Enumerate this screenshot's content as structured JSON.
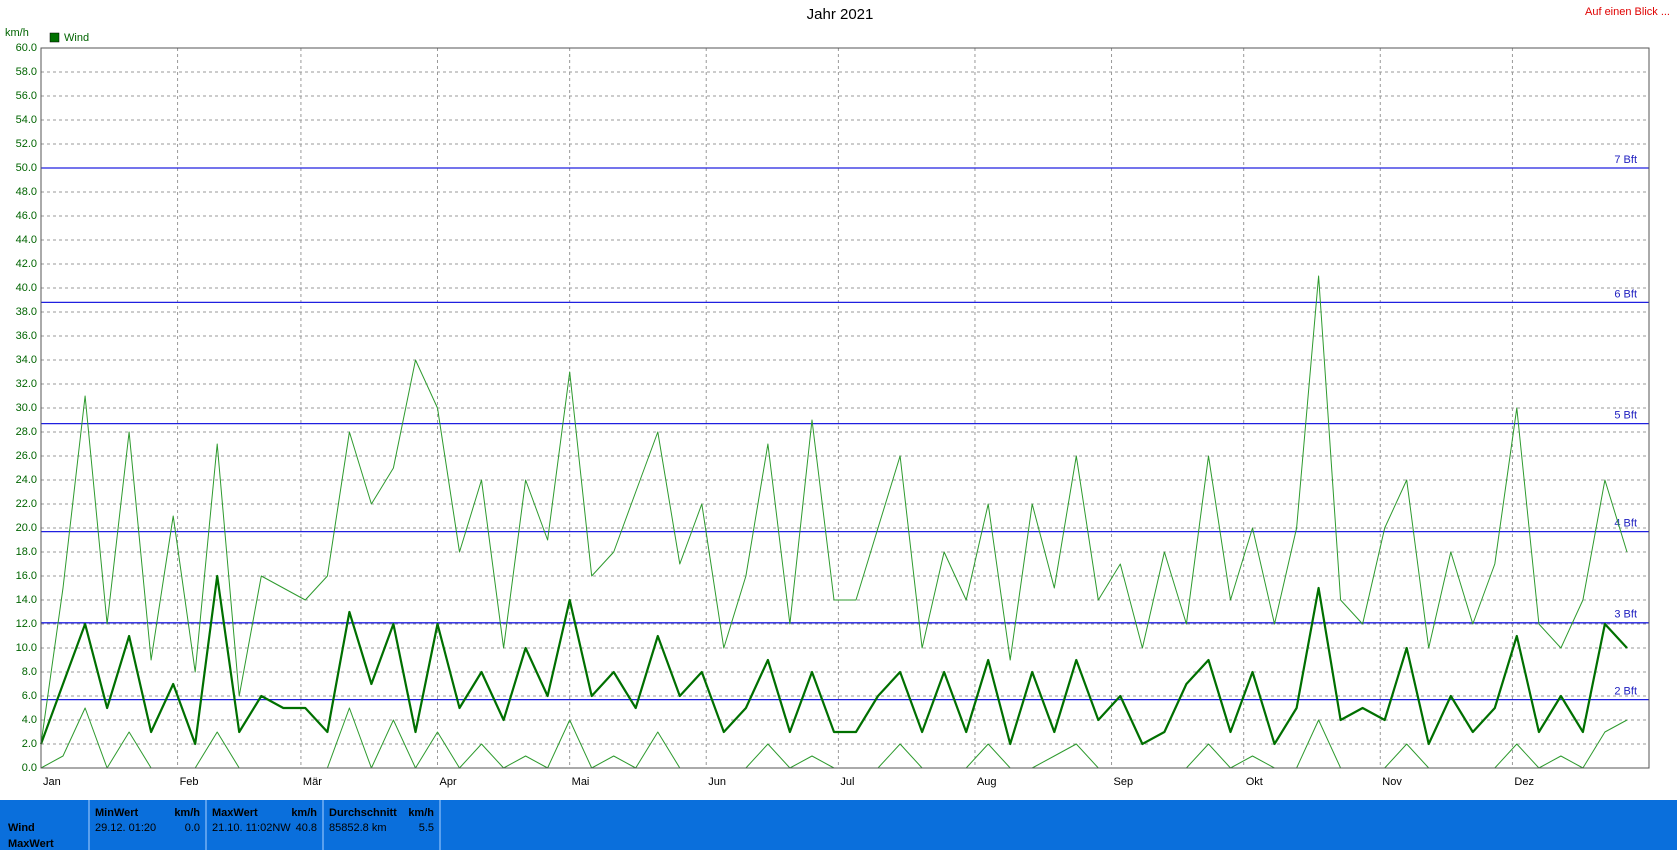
{
  "chart_data": {
    "type": "line",
    "title": "Jahr 2021",
    "corner_link": "Auf einen Blick ...",
    "y_unit": "km/h",
    "xlim": [
      1,
      366
    ],
    "xticks": [
      {
        "value": 1,
        "label": "Jan"
      },
      {
        "value": 32,
        "label": "Feb"
      },
      {
        "value": 60,
        "label": "Mär"
      },
      {
        "value": 91,
        "label": "Apr"
      },
      {
        "value": 121,
        "label": "Mai"
      },
      {
        "value": 152,
        "label": "Jun"
      },
      {
        "value": 182,
        "label": "Jul"
      },
      {
        "value": 213,
        "label": "Aug"
      },
      {
        "value": 244,
        "label": "Sep"
      },
      {
        "value": 274,
        "label": "Okt"
      },
      {
        "value": 305,
        "label": "Nov"
      },
      {
        "value": 335,
        "label": "Dez"
      }
    ],
    "ylim": [
      0,
      60
    ],
    "yticks": [
      {
        "value": 0,
        "label": "0.0"
      },
      {
        "value": 2,
        "label": "2.0"
      },
      {
        "value": 4,
        "label": "4.0"
      },
      {
        "value": 6,
        "label": "6.0"
      },
      {
        "value": 8,
        "label": "8.0"
      },
      {
        "value": 10,
        "label": "10.0"
      },
      {
        "value": 12,
        "label": "12.0"
      },
      {
        "value": 14,
        "label": "14.0"
      },
      {
        "value": 16,
        "label": "16.0"
      },
      {
        "value": 18,
        "label": "18.0"
      },
      {
        "value": 20,
        "label": "20.0"
      },
      {
        "value": 22,
        "label": "22.0"
      },
      {
        "value": 24,
        "label": "24.0"
      },
      {
        "value": 26,
        "label": "26.0"
      },
      {
        "value": 28,
        "label": "28.0"
      },
      {
        "value": 30,
        "label": "30.0"
      },
      {
        "value": 32,
        "label": "32.0"
      },
      {
        "value": 34,
        "label": "34.0"
      },
      {
        "value": 36,
        "label": "36.0"
      },
      {
        "value": 38,
        "label": "38.0"
      },
      {
        "value": 40,
        "label": "40.0"
      },
      {
        "value": 42,
        "label": "42.0"
      },
      {
        "value": 44,
        "label": "44.0"
      },
      {
        "value": 46,
        "label": "46.0"
      },
      {
        "value": 48,
        "label": "48.0"
      },
      {
        "value": 50,
        "label": "50.0"
      },
      {
        "value": 52,
        "label": "52.0"
      },
      {
        "value": 54,
        "label": "54.0"
      },
      {
        "value": 56,
        "label": "56.0"
      },
      {
        "value": 58,
        "label": "58.0"
      },
      {
        "value": 60,
        "label": "60.0"
      }
    ],
    "grid": true,
    "reference_lines": [
      {
        "value": 50,
        "label": "7 Bft"
      },
      {
        "value": 38.8,
        "label": "6 Bft"
      },
      {
        "value": 28.7,
        "label": "5 Bft"
      },
      {
        "value": 19.7,
        "label": "4 Bft"
      },
      {
        "value": 12.1,
        "label": "3 Bft"
      },
      {
        "value": 5.7,
        "label": "2 Bft"
      }
    ],
    "x": [
      1,
      6,
      11,
      16,
      21,
      26,
      31,
      36,
      41,
      46,
      51,
      56,
      61,
      66,
      71,
      76,
      81,
      86,
      91,
      96,
      101,
      106,
      111,
      116,
      121,
      126,
      131,
      136,
      141,
      146,
      151,
      156,
      161,
      166,
      171,
      176,
      181,
      186,
      191,
      196,
      201,
      206,
      211,
      216,
      221,
      226,
      231,
      236,
      241,
      246,
      251,
      256,
      261,
      266,
      271,
      276,
      281,
      286,
      291,
      296,
      301,
      306,
      311,
      316,
      321,
      326,
      331,
      336,
      341,
      346,
      351,
      356,
      361
    ],
    "series": [
      {
        "name": "Wind",
        "color": "#007000",
        "values": [
          2,
          7,
          12,
          5,
          11,
          3,
          7,
          2,
          16,
          3,
          6,
          5,
          5,
          3,
          13,
          7,
          12,
          3,
          12,
          5,
          8,
          4,
          10,
          6,
          14,
          6,
          8,
          5,
          11,
          6,
          8,
          3,
          5,
          9,
          3,
          8,
          3,
          3,
          6,
          8,
          3,
          8,
          3,
          9,
          2,
          8,
          3,
          9,
          4,
          6,
          2,
          3,
          7,
          9,
          3,
          8,
          2,
          5,
          15,
          4,
          5,
          4,
          10,
          2,
          6,
          3,
          5,
          11,
          3,
          6,
          3,
          12,
          10
        ]
      },
      {
        "color": "#2e9a2e",
        "values": [
          2,
          15,
          31,
          12,
          28,
          9,
          21,
          8,
          27,
          6,
          16,
          15,
          14,
          16,
          28,
          22,
          25,
          34,
          30,
          18,
          24,
          10,
          24,
          19,
          33,
          16,
          18,
          23,
          28,
          17,
          22,
          10,
          16,
          27,
          12,
          29,
          14,
          14,
          20,
          26,
          10,
          18,
          14,
          22,
          9,
          22,
          15,
          26,
          14,
          17,
          10,
          18,
          12,
          26,
          14,
          20,
          12,
          20,
          41,
          14,
          12,
          20,
          24,
          10,
          18,
          12,
          17,
          30,
          12,
          10,
          14,
          24,
          18
        ]
      },
      {
        "color": "#2e9a2e",
        "values": [
          0,
          1,
          5,
          0,
          3,
          0,
          0,
          0,
          3,
          0,
          0,
          0,
          0,
          0,
          5,
          0,
          4,
          0,
          3,
          0,
          2,
          0,
          1,
          0,
          4,
          0,
          1,
          0,
          3,
          0,
          0,
          0,
          0,
          2,
          0,
          1,
          0,
          0,
          0,
          2,
          0,
          0,
          0,
          2,
          0,
          0,
          1,
          2,
          0,
          0,
          0,
          0,
          0,
          2,
          0,
          1,
          0,
          0,
          4,
          0,
          0,
          0,
          2,
          0,
          0,
          0,
          0,
          2,
          0,
          1,
          0,
          3,
          4
        ]
      }
    ]
  },
  "stats_table": {
    "row_labels": [
      "Wind",
      "MaxWert"
    ],
    "columns": [
      {
        "header": "MinWert",
        "unit": "km/h",
        "cells": [
          "29.12.  01:20",
          "0.0"
        ]
      },
      {
        "header": "MaxWert",
        "unit": "km/h",
        "cells": [
          "21.10.  11:02NW",
          "40.8"
        ]
      },
      {
        "header": "Durchschnitt",
        "unit": "km/h",
        "cells": [
          "85852.8 km",
          "5.5"
        ]
      }
    ]
  }
}
